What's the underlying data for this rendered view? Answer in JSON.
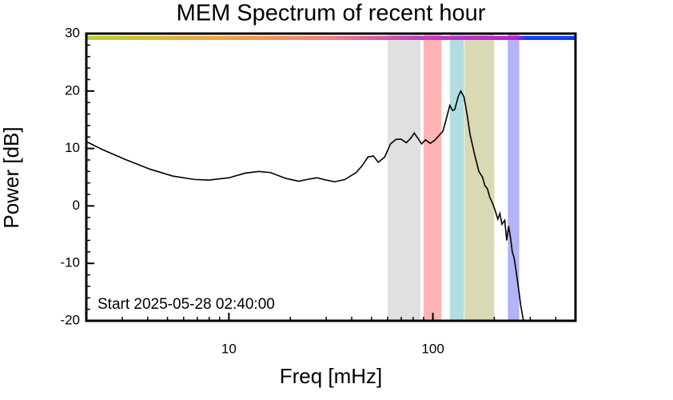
{
  "chart_data": {
    "type": "line",
    "title": "MEM Spectrum of recent hour",
    "x_label": "Freq [mHz]",
    "y_label": "Power [dB]",
    "annotation": "Start 2025-05-28 02:40:00",
    "x_scale": "log",
    "color": "#000000",
    "xlim": [
      2,
      500
    ],
    "xticks": [
      10,
      100
    ],
    "xminor": [
      2,
      3,
      4,
      5,
      6,
      7,
      8,
      9,
      20,
      30,
      40,
      50,
      60,
      70,
      80,
      90,
      200,
      300,
      400,
      500
    ],
    "ylim": [
      -20,
      30
    ],
    "yticks": [
      -20,
      -10,
      0,
      10,
      20,
      30
    ],
    "yminor": [
      -18,
      -16,
      -14,
      -12,
      -8,
      -6,
      -4,
      -2,
      2,
      4,
      6,
      8,
      12,
      14,
      16,
      18,
      22,
      24,
      26,
      28
    ],
    "bands": [
      {
        "range": [
          60,
          87
        ],
        "color": "#e0e0e0"
      },
      {
        "range": [
          90,
          110
        ],
        "color": "#ffb3b3"
      },
      {
        "range": [
          121,
          142
        ],
        "color": "#b3dde0"
      },
      {
        "range": [
          143,
          200
        ],
        "color": "#d9d9b3"
      },
      {
        "range": [
          233,
          265
        ],
        "color": "#b3b3f5"
      }
    ],
    "x": [
      2,
      2.4,
      3.1,
      4.1,
      5.3,
      6.8,
      8,
      10,
      12,
      14,
      16,
      19,
      22,
      25,
      27,
      30,
      33,
      37,
      42,
      45,
      48,
      51,
      54,
      58,
      62,
      66,
      70,
      74,
      78,
      81,
      85,
      88,
      92,
      97,
      102,
      108,
      112,
      117,
      121,
      125,
      128,
      133,
      137,
      142,
      147,
      152,
      160,
      168,
      175,
      180,
      185,
      190,
      196,
      202,
      208,
      213,
      218,
      225,
      230,
      235,
      240,
      245,
      250,
      255,
      262,
      270,
      278
    ],
    "values": [
      11.2,
      9.8,
      8.1,
      6.4,
      5.2,
      4.6,
      4.5,
      4.9,
      5.7,
      6.0,
      5.8,
      4.8,
      4.3,
      4.7,
      4.9,
      4.5,
      4.2,
      4.6,
      5.8,
      7.0,
      8.5,
      8.7,
      7.6,
      8.5,
      10.8,
      11.6,
      11.6,
      11.0,
      11.8,
      12.7,
      11.6,
      10.8,
      11.5,
      10.9,
      11.4,
      12.4,
      13.0,
      15.5,
      17.5,
      16.6,
      16.8,
      19.0,
      20.0,
      19.0,
      16,
      12.5,
      9,
      6,
      5,
      3.5,
      3,
      1.5,
      0.5,
      -0.8,
      -2.3,
      -1.3,
      -3.2,
      -2.5,
      -6,
      -3.5,
      -5.5,
      -8,
      -9,
      -11,
      -14,
      -17.5,
      -20
    ]
  }
}
